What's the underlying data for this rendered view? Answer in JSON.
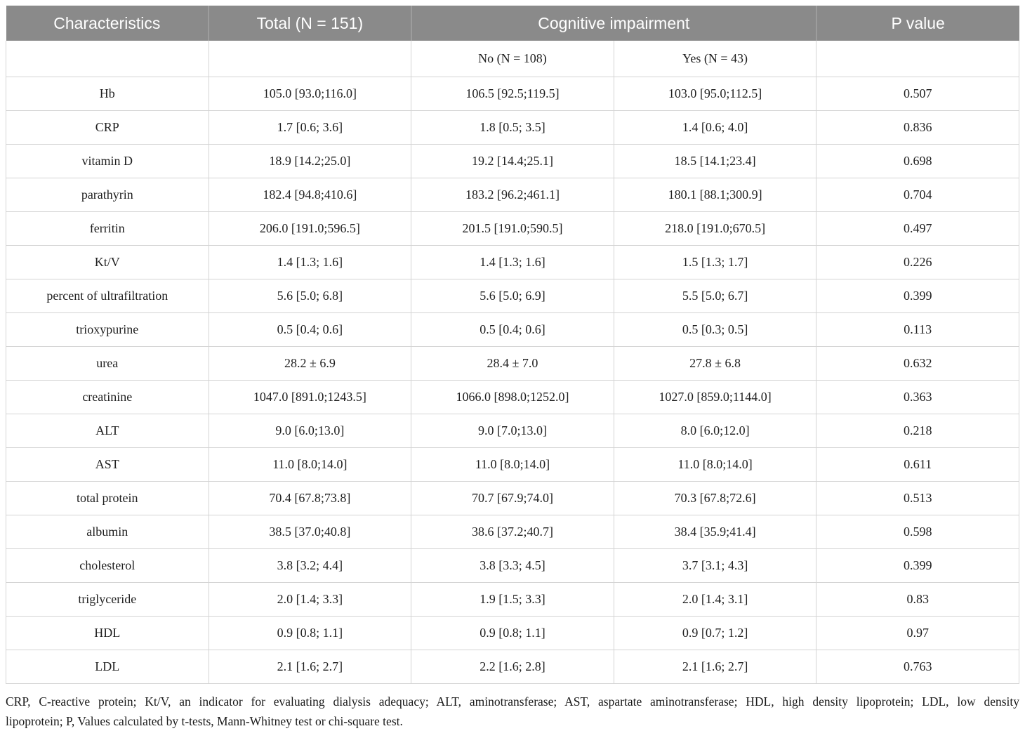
{
  "table": {
    "header": {
      "characteristics": "Characteristics",
      "total": "Total (N = 151)",
      "cognitive_impairment": "Cognitive impairment",
      "p_value": "P value",
      "no_subheader": "No (N = 108)",
      "yes_subheader": "Yes (N = 43)"
    },
    "rows": [
      {
        "label": "Hb",
        "total": "105.0 [93.0;116.0]",
        "no": "106.5 [92.5;119.5]",
        "yes": "103.0 [95.0;112.5]",
        "p": "0.507"
      },
      {
        "label": "CRP",
        "total": "1.7 [0.6; 3.6]",
        "no": "1.8 [0.5; 3.5]",
        "yes": "1.4 [0.6; 4.0]",
        "p": "0.836"
      },
      {
        "label": "vitamin D",
        "total": "18.9 [14.2;25.0]",
        "no": "19.2 [14.4;25.1]",
        "yes": "18.5 [14.1;23.4]",
        "p": "0.698"
      },
      {
        "label": "parathyrin",
        "total": "182.4 [94.8;410.6]",
        "no": "183.2 [96.2;461.1]",
        "yes": "180.1 [88.1;300.9]",
        "p": "0.704"
      },
      {
        "label": "ferritin",
        "total": "206.0 [191.0;596.5]",
        "no": "201.5 [191.0;590.5]",
        "yes": "218.0 [191.0;670.5]",
        "p": "0.497"
      },
      {
        "label": "Kt/V",
        "total": "1.4 [1.3; 1.6]",
        "no": "1.4 [1.3; 1.6]",
        "yes": "1.5 [1.3; 1.7]",
        "p": "0.226"
      },
      {
        "label": "percent of ultrafiltration",
        "total": "5.6 [5.0; 6.8]",
        "no": "5.6 [5.0; 6.9]",
        "yes": "5.5 [5.0; 6.7]",
        "p": "0.399"
      },
      {
        "label": "trioxypurine",
        "total": "0.5 [0.4; 0.6]",
        "no": "0.5 [0.4; 0.6]",
        "yes": "0.5 [0.3; 0.5]",
        "p": "0.113"
      },
      {
        "label": "urea",
        "total": "28.2 ± 6.9",
        "no": "28.4 ± 7.0",
        "yes": "27.8 ± 6.8",
        "p": "0.632"
      },
      {
        "label": "creatinine",
        "total": "1047.0 [891.0;1243.5]",
        "no": "1066.0 [898.0;1252.0]",
        "yes": "1027.0 [859.0;1144.0]",
        "p": "0.363"
      },
      {
        "label": "ALT",
        "total": "9.0 [6.0;13.0]",
        "no": "9.0 [7.0;13.0]",
        "yes": "8.0 [6.0;12.0]",
        "p": "0.218"
      },
      {
        "label": "AST",
        "total": "11.0 [8.0;14.0]",
        "no": "11.0 [8.0;14.0]",
        "yes": "11.0 [8.0;14.0]",
        "p": "0.611"
      },
      {
        "label": "total protein",
        "total": "70.4 [67.8;73.8]",
        "no": "70.7 [67.9;74.0]",
        "yes": "70.3 [67.8;72.6]",
        "p": "0.513"
      },
      {
        "label": "albumin",
        "total": "38.5 [37.0;40.8]",
        "no": "38.6 [37.2;40.7]",
        "yes": "38.4 [35.9;41.4]",
        "p": "0.598"
      },
      {
        "label": "cholesterol",
        "total": "3.8 [3.2; 4.4]",
        "no": "3.8 [3.3; 4.5]",
        "yes": "3.7 [3.1; 4.3]",
        "p": "0.399"
      },
      {
        "label": "triglyceride",
        "total": "2.0 [1.4; 3.3]",
        "no": "1.9 [1.5; 3.3]",
        "yes": "2.0 [1.4; 3.1]",
        "p": "0.83"
      },
      {
        "label": "HDL",
        "total": "0.9 [0.8; 1.1]",
        "no": "0.9 [0.8; 1.1]",
        "yes": "0.9 [0.7; 1.2]",
        "p": "0.97"
      },
      {
        "label": "LDL",
        "total": "2.1 [1.6; 2.7]",
        "no": "2.2 [1.6; 2.8]",
        "yes": "2.1 [1.6; 2.7]",
        "p": "0.763"
      }
    ],
    "footnote_line1": "CRP, C-reactive protein; Kt/V, an indicator for evaluating dialysis adequacy; ALT, aminotransferase; AST, aspartate aminotransferase; HDL, high density lipoprotein; LDL, low density",
    "footnote_line2": "lipoprotein; P, Values calculated by t-tests, Mann-Whitney test or chi-square test."
  },
  "colors": {
    "header_bg": "#8a8a8a",
    "header_divider": "#9d9d9d",
    "header_text": "#ffffff",
    "cell_border": "#d4d4d4",
    "body_text": "#1f1f1f"
  }
}
